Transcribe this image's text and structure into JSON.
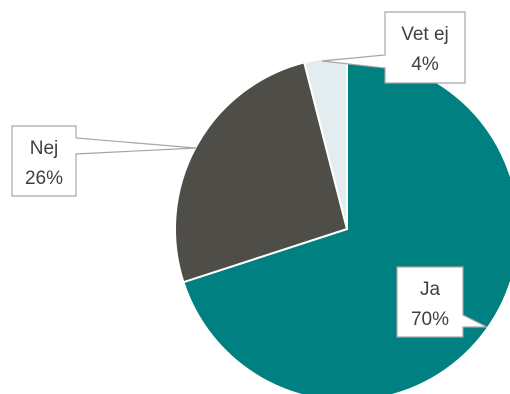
{
  "chart_data": {
    "type": "pie",
    "title": "",
    "slices": [
      {
        "label": "Ja",
        "value": 70,
        "value_label": "70%",
        "color": "#008080"
      },
      {
        "label": "Nej",
        "value": 26,
        "value_label": "26%",
        "color": "#4f4d48"
      },
      {
        "label": "Vet ej",
        "value": 4,
        "value_label": "4%",
        "color": "#e3edf0"
      }
    ],
    "legend": "none",
    "data_labels": "callouts"
  }
}
